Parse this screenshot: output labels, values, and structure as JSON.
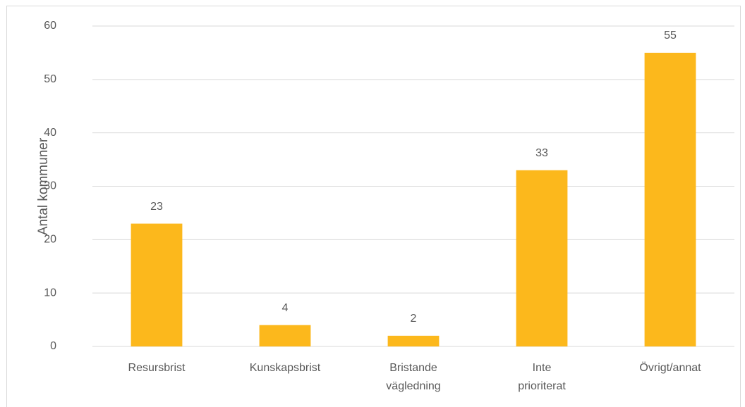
{
  "chart_data": {
    "type": "bar",
    "y_label": "Antal kommuner",
    "categories": [
      "Resursbrist",
      "Kunskapsbrist",
      "Bristande vägledning",
      "Inte prioriterat",
      "Övrigt/annat"
    ],
    "values": [
      23,
      4,
      2,
      33,
      55
    ],
    "color": "#fcb81c",
    "ylim": [
      0,
      60
    ],
    "yticks": [
      0,
      10,
      20,
      30,
      40,
      50,
      60
    ],
    "grid": true
  }
}
